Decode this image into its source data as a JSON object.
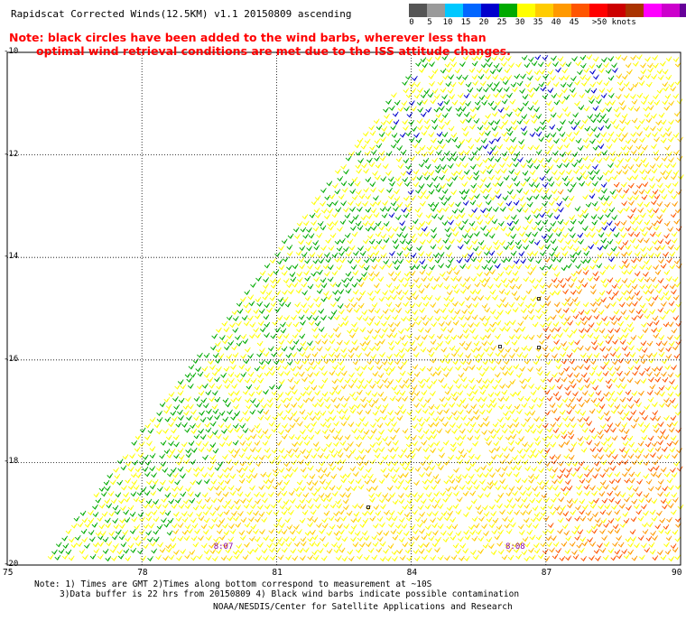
{
  "title": "Rapidscat Corrected Winds(12.5KM) v1.1 20150809 ascending",
  "note": {
    "line1": "Note: black circles have been added to the wind barbs, wherever less than",
    "line2": "optimal wind retrieval conditions are met due to the ISS attitude changes."
  },
  "colorbar": {
    "unit": "knots",
    "colors": [
      "#555555",
      "#9a9a9a",
      "#00c8ff",
      "#0066ff",
      "#0000cc",
      "#00aa00",
      "#ffff00",
      "#ffcc00",
      "#ff9900",
      "#ff5500",
      "#ff0000",
      "#cc0000",
      "#aa3300",
      "#ff00ff",
      "#cc00cc",
      "#660099"
    ],
    "labels": [
      {
        "t": "0",
        "i": 0
      },
      {
        "t": "5",
        "i": 2
      },
      {
        "t": "10",
        "i": 4
      },
      {
        "t": "15",
        "i": 6
      },
      {
        "t": "20",
        "i": 8
      },
      {
        "t": "25",
        "i": 10
      },
      {
        "t": "30",
        "i": 12
      },
      {
        "t": "35",
        "i": 14
      },
      {
        "t": "40",
        "i": 16
      },
      {
        "t": "45",
        "i": 18
      },
      {
        "t": ">50 knots",
        "i": 20
      }
    ]
  },
  "axes": {
    "lon": [
      75,
      78,
      81,
      84,
      87,
      90
    ],
    "lat": [
      -10,
      -12,
      -14,
      -16,
      -18,
      -20
    ],
    "lon_labels": [
      "75",
      "78",
      "81",
      "84",
      "87",
      "90"
    ],
    "lat_labels": [
      "-10",
      "-12",
      "-14",
      "-16",
      "-18",
      "-20"
    ]
  },
  "swath_segments": [
    {
      "label": "8:07",
      "lon": 79.8,
      "lat": -19.65
    },
    {
      "label": "8:08",
      "lon": 86.3,
      "lat": -19.65
    }
  ],
  "footer": {
    "line1": "Note: 1) Times are GMT 2)Times along bottom correspond to measurement at ~10S",
    "line2": "3)Data buffer is 22 hrs from 20150809 4) Black wind barbs indicate possible contamination",
    "credit": "NOAA/NESDIS/Center for Satellite Applications and Research"
  }
}
